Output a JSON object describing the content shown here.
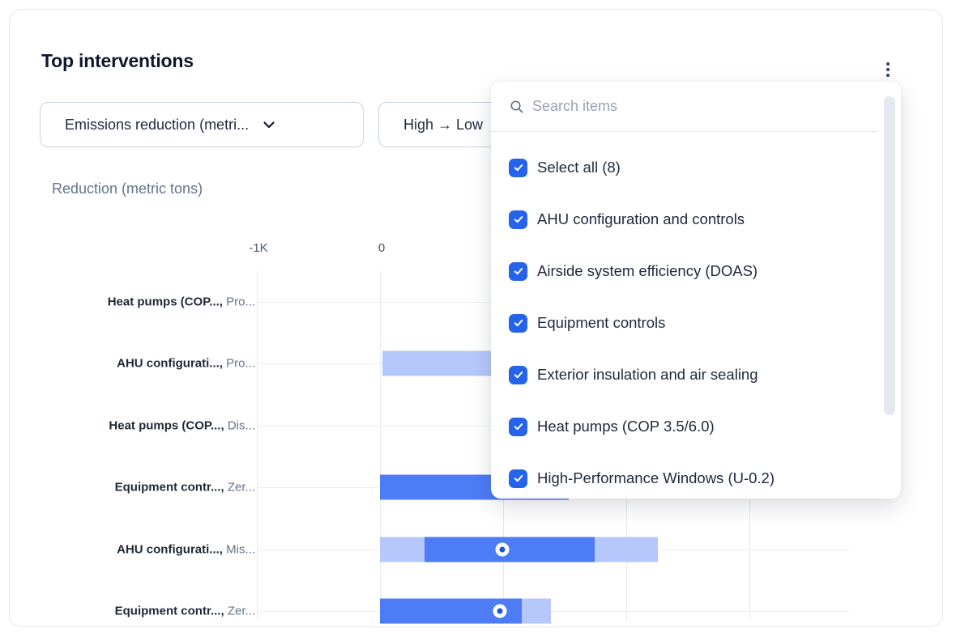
{
  "card": {
    "title": "Top interventions"
  },
  "controls": {
    "metric_dropdown": {
      "value": "Emissions reduction (metri..."
    },
    "sort_dropdown": {
      "value": "High → Low"
    }
  },
  "chart_data": {
    "type": "bar",
    "orientation": "horizontal-range",
    "axis_title": "Reduction (metric tons)",
    "x_ticks": [
      {
        "label": "-1K",
        "value": -1000
      },
      {
        "label": "0",
        "value": 0
      }
    ],
    "x_gridline_values": [
      -1000,
      0,
      1000,
      2000,
      3000
    ],
    "rows": [
      {
        "label_primary": "Heat pumps (COP...,",
        "label_secondary": "Pro...",
        "segments": [],
        "marker": null
      },
      {
        "label_primary": "AHU configurati...,",
        "label_secondary": "Pro...",
        "segments": [
          {
            "from": 20,
            "to": 1530,
            "tone": "light"
          }
        ],
        "marker": null
      },
      {
        "label_primary": "Heat pumps (COP...,",
        "label_secondary": "Dis...",
        "segments": [],
        "marker": null
      },
      {
        "label_primary": "Equipment contr...,",
        "label_secondary": "Zer...",
        "segments": [
          {
            "from": 0,
            "to": 1530,
            "tone": "dark"
          }
        ],
        "marker": null
      },
      {
        "label_primary": "AHU configurati...,",
        "label_secondary": "Mis...",
        "segments": [
          {
            "from": 0,
            "to": 360,
            "tone": "light"
          },
          {
            "from": 360,
            "to": 1745,
            "tone": "dark"
          },
          {
            "from": 1745,
            "to": 2255,
            "tone": "light"
          }
        ],
        "marker": 995
      },
      {
        "label_primary": "Equipment contr...,",
        "label_secondary": "Zer...",
        "segments": [
          {
            "from": 0,
            "to": 1150,
            "tone": "dark"
          },
          {
            "from": 1150,
            "to": 1390,
            "tone": "light"
          }
        ],
        "marker": 975
      }
    ]
  },
  "panel": {
    "search": {
      "placeholder": "Search items"
    },
    "select_all": {
      "label": "Select all (8)",
      "checked": true
    },
    "items": [
      {
        "label": "AHU configuration and controls",
        "checked": true
      },
      {
        "label": "Airside system efficiency (DOAS)",
        "checked": true
      },
      {
        "label": "Equipment controls",
        "checked": true
      },
      {
        "label": "Exterior insulation and air sealing",
        "checked": true
      },
      {
        "label": "Heat pumps (COP 3.5/6.0)",
        "checked": true
      },
      {
        "label": "High-Performance Windows (U-0.2)",
        "checked": true
      }
    ]
  },
  "colors": {
    "accent": "#2563eb",
    "bar_dark": "#4d7cf6",
    "bar_light": "#b6c8fb",
    "marker_inner": "#1c54d8",
    "text_dark": "#0f172a",
    "text_gray": "#64748b"
  }
}
